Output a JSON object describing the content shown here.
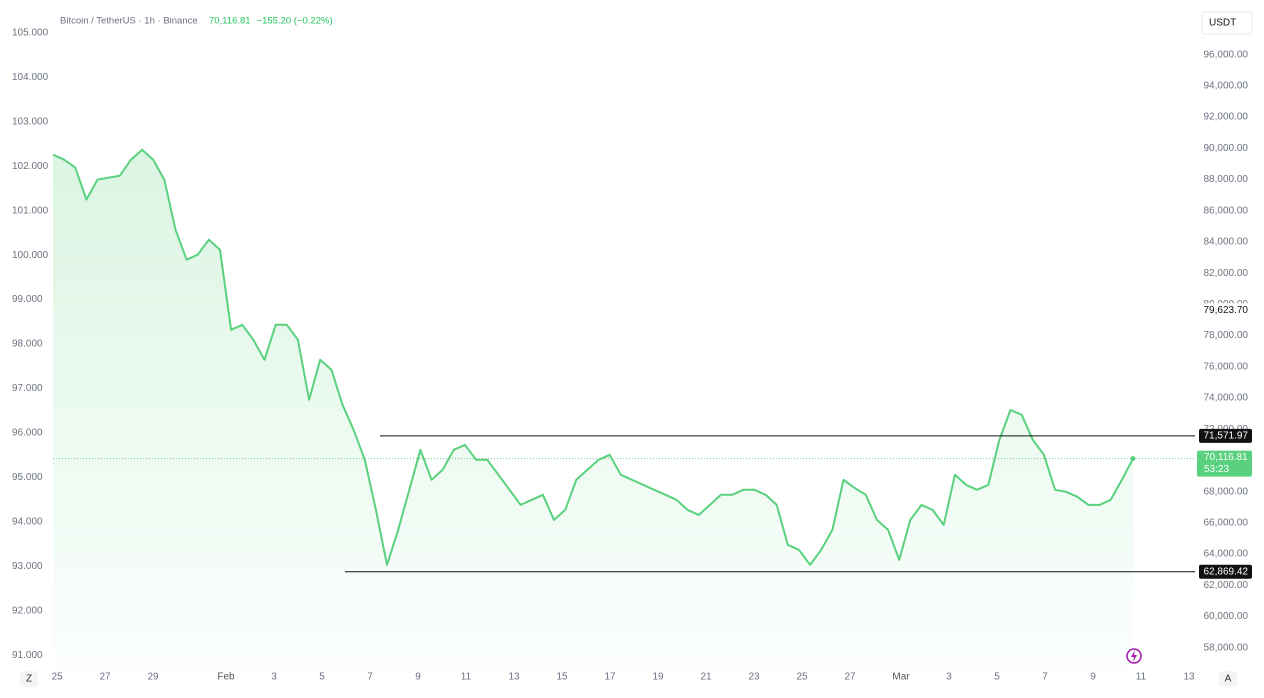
{
  "chart_data": {
    "type": "area",
    "header": {
      "symbol": "Bitcoin / TetherUS · 1h · Binance",
      "price": "70,116.81",
      "change": "−155.20 (−0.22%)"
    },
    "currency": "USDT",
    "series": [
      {
        "color": "#5ad17e",
        "values": [
          89590,
          89270,
          88760,
          86710,
          87990,
          88120,
          88240,
          89270,
          89910,
          89270,
          87990,
          84780,
          82860,
          83180,
          84140,
          83500,
          78370,
          78690,
          77730,
          76450,
          78690,
          78690,
          77730,
          73890,
          76450,
          75810,
          73570,
          71960,
          70040,
          66830,
          63310,
          65550,
          68120,
          70680,
          68760,
          69400,
          70680,
          71000,
          70040,
          70040,
          69080,
          68120,
          67150,
          67480,
          67800,
          66190,
          66830,
          68760,
          69400,
          70040,
          70360,
          69080,
          68760,
          68440,
          68120,
          67800,
          67480,
          66830,
          66510,
          67150,
          67800,
          67800,
          68120,
          68120,
          67800,
          67150,
          64590,
          64270,
          63310,
          64270,
          65550,
          68760,
          68240,
          67800,
          66190,
          65550,
          63630,
          66190,
          67150,
          66830,
          65870,
          69080,
          68440,
          68120,
          68440,
          71320,
          73240,
          72920,
          71320,
          70360,
          68120,
          67990,
          67670,
          67150,
          67150,
          67480,
          68760,
          70116.81
        ]
      }
    ],
    "ylim": [
      56700,
      99500
    ],
    "yticks": [
      {
        "value": 58000,
        "label": "58,000.00"
      },
      {
        "value": 60000,
        "label": "60,000.00"
      },
      {
        "value": 62000,
        "label": "62,000.00"
      },
      {
        "value": 64000,
        "label": "64,000.00"
      },
      {
        "value": 66000,
        "label": "66,000.00"
      },
      {
        "value": 68000,
        "label": "68,000.00"
      },
      {
        "value": 70000,
        "label": "70,000.00"
      },
      {
        "value": 72000,
        "label": "72,000.00"
      },
      {
        "value": 74000,
        "label": "74,000.00"
      },
      {
        "value": 76000,
        "label": "76,000.00"
      },
      {
        "value": 78000,
        "label": "78,000.00"
      },
      {
        "value": 80000,
        "label": "80,000.00"
      },
      {
        "value": 82000,
        "label": "82,000.00"
      },
      {
        "value": 84000,
        "label": "84,000.00"
      },
      {
        "value": 86000,
        "label": "86,000.00"
      },
      {
        "value": 88000,
        "label": "88,000.00"
      },
      {
        "value": 90000,
        "label": "90,000.00"
      },
      {
        "value": 92000,
        "label": "92,000.00"
      },
      {
        "value": 94000,
        "label": "94,000.00"
      },
      {
        "value": 96000,
        "label": "96,000.00"
      }
    ],
    "y2lim": [
      90.71,
      105.74
    ],
    "y2ticks": [
      {
        "value": 91,
        "label": "91.000"
      },
      {
        "value": 92,
        "label": "92.000"
      },
      {
        "value": 93,
        "label": "93.000"
      },
      {
        "value": 94,
        "label": "94.000"
      },
      {
        "value": 95,
        "label": "95.000"
      },
      {
        "value": 96,
        "label": "96.000"
      },
      {
        "value": 97,
        "label": "97.000"
      },
      {
        "value": 98,
        "label": "98.000"
      },
      {
        "value": 99,
        "label": "99.000"
      },
      {
        "value": 100,
        "label": "100.000"
      },
      {
        "value": 101,
        "label": "101.000"
      },
      {
        "value": 102,
        "label": "102.000"
      },
      {
        "value": 103,
        "label": "103.000"
      },
      {
        "value": 104,
        "label": "104.000"
      },
      {
        "value": 105,
        "label": "105.000"
      }
    ],
    "x_labels": [
      "25",
      "27",
      "29",
      "Feb",
      "3",
      "5",
      "7",
      "9",
      "11",
      "13",
      "15",
      "17",
      "19",
      "21",
      "23",
      "25",
      "27",
      "Mar",
      "3",
      "5",
      "7",
      "9",
      "11",
      "13"
    ],
    "price_lines": [
      {
        "value": 71571.97,
        "label": "71,571.97"
      },
      {
        "value": 62869.42,
        "label": "62,869.42"
      }
    ],
    "last_price": {
      "value": 70116.81,
      "label": "70,116.81",
      "countdown": "53:23"
    },
    "crosshair": {
      "value": 79623.7,
      "label": "79,623.70"
    },
    "corner_left": "Z",
    "corner_right": "A"
  }
}
